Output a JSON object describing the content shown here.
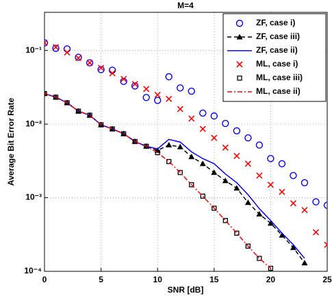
{
  "chart_data": {
    "type": "line",
    "title": "M=4",
    "x_label": "SNR [dB]",
    "y_label": "Average Bit Error Rate",
    "xlim": [
      0,
      25
    ],
    "xticks": [
      0,
      5,
      10,
      15,
      20,
      25
    ],
    "ylim": [
      0.0001,
      0.33
    ],
    "log_y": true,
    "yticks": [
      {
        "value": 0.0001,
        "label": "10⁻⁴"
      },
      {
        "value": 0.001,
        "label": "10⁻³"
      },
      {
        "value": 0.01,
        "label": "10⁻²"
      },
      {
        "value": 0.1,
        "label": "10⁻¹"
      }
    ],
    "grid": true,
    "legend": "upper right",
    "series": [
      {
        "name": "ZF, case i)",
        "color": "#0000ff",
        "marker": "circle",
        "line": "none",
        "x": [
          0,
          1,
          2,
          3,
          4,
          5,
          6,
          7,
          8,
          9,
          10,
          11,
          12,
          13,
          14,
          15,
          16,
          17,
          18,
          19,
          20,
          21,
          22,
          23,
          24,
          25
        ],
        "values": [
          0.127,
          0.107,
          0.105,
          0.081,
          0.068,
          0.055,
          0.054,
          0.038,
          0.033,
          0.023,
          0.021,
          0.044,
          0.031,
          0.028,
          0.0141,
          0.0129,
          0.0102,
          0.0081,
          0.0065,
          0.0052,
          0.0034,
          0.0029,
          0.002,
          0.0016,
          0.00088,
          0.00079
        ]
      },
      {
        "name": "ZF, case iii)",
        "color": "#000000",
        "marker": "triangle",
        "line": "dashed",
        "x": [
          0,
          1,
          2,
          3,
          4,
          5,
          6,
          7,
          8,
          9,
          10,
          11,
          12,
          13,
          14,
          15,
          16,
          17,
          18,
          19,
          20,
          21,
          22,
          23
        ],
        "values": [
          0.026,
          0.0232,
          0.0195,
          0.015,
          0.0132,
          0.0098,
          0.0086,
          0.0074,
          0.0058,
          0.005,
          0.0044,
          0.0052,
          0.0049,
          0.0036,
          0.0029,
          0.0022,
          0.0017,
          0.00135,
          0.00086,
          0.0006,
          0.00045,
          0.00031,
          0.00021,
          0.00013
        ]
      },
      {
        "name": "ZF, case ii)",
        "color": "#0000ff",
        "marker": "none",
        "line": "solid",
        "x": [
          0,
          1,
          2,
          3,
          4,
          5,
          6,
          7,
          8,
          9,
          10,
          11,
          12,
          13,
          14,
          15,
          16,
          17,
          18,
          19,
          20,
          21,
          22,
          23
        ],
        "values": [
          0.026,
          0.0232,
          0.0195,
          0.015,
          0.0132,
          0.0098,
          0.0086,
          0.0074,
          0.0058,
          0.005,
          0.0046,
          0.0062,
          0.0057,
          0.0042,
          0.0034,
          0.0029,
          0.0021,
          0.0016,
          0.0011,
          0.00071,
          0.00049,
          0.00033,
          0.00023,
          0.00015
        ]
      },
      {
        "name": "ML, case i)",
        "color": "#ff0000",
        "marker": "cross",
        "line": "none",
        "x": [
          0,
          1,
          2,
          3,
          4,
          5,
          6,
          7,
          8,
          9,
          10,
          11,
          12,
          13,
          14,
          15,
          16,
          17,
          18,
          19,
          20,
          21,
          22,
          23,
          24,
          25
        ],
        "values": [
          0.127,
          0.111,
          0.094,
          0.079,
          0.068,
          0.058,
          0.049,
          0.041,
          0.035,
          0.03,
          0.025,
          0.022,
          0.016,
          0.0119,
          0.0086,
          0.0065,
          0.0048,
          0.0037,
          0.0029,
          0.002,
          0.0015,
          0.0012,
          0.00084,
          0.00068,
          0.00034,
          0.00023
        ]
      },
      {
        "name": "ML, case iii)",
        "color": "#000000",
        "marker": "square",
        "line": "none",
        "x": [
          0,
          1,
          2,
          3,
          4,
          5,
          6,
          7,
          8,
          9,
          10,
          11,
          12,
          13,
          14,
          15,
          16,
          17,
          18,
          19,
          20
        ],
        "values": [
          0.026,
          0.0232,
          0.0195,
          0.015,
          0.0132,
          0.0098,
          0.0086,
          0.0074,
          0.0058,
          0.005,
          0.0041,
          0.0031,
          0.0022,
          0.0015,
          0.00105,
          0.00072,
          0.00049,
          0.00033,
          0.00022,
          0.00015,
          0.00011
        ]
      },
      {
        "name": "ML, case ii)",
        "color": "#ff0000",
        "marker": "none",
        "line": "dashdot",
        "x": [
          0,
          1,
          2,
          3,
          4,
          5,
          6,
          7,
          8,
          9,
          10,
          11,
          12,
          13,
          14,
          15,
          16,
          17,
          18,
          19,
          20
        ],
        "values": [
          0.026,
          0.0232,
          0.0195,
          0.015,
          0.0132,
          0.0098,
          0.0086,
          0.0074,
          0.0058,
          0.005,
          0.0041,
          0.0031,
          0.0022,
          0.0015,
          0.00105,
          0.00072,
          0.00049,
          0.00033,
          0.00022,
          0.00015,
          0.00011
        ]
      }
    ]
  }
}
